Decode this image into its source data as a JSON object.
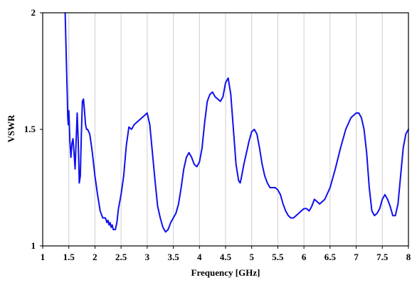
{
  "chart_data": {
    "type": "line",
    "title": "",
    "xlabel": "Frequency [GHz]",
    "ylabel": "VSWR",
    "xlim": [
      1,
      8
    ],
    "ylim": [
      1,
      2
    ],
    "x_ticks": [
      "1",
      "1.5",
      "2",
      "2.5",
      "3",
      "3.5",
      "4",
      "4.5",
      "5",
      "5.5",
      "6",
      "6.5",
      "7",
      "7.5",
      "8"
    ],
    "y_ticks": [
      "1",
      "1.5",
      "2"
    ],
    "grid": "vertical",
    "legend": "none",
    "colors": {
      "line": "#1010ee",
      "grid": "#cfcfcf",
      "axis": "#000000"
    },
    "series": [
      {
        "x": [
          1.43,
          1.45,
          1.47,
          1.48,
          1.49,
          1.5,
          1.51,
          1.52,
          1.54,
          1.56,
          1.58,
          1.6,
          1.62,
          1.64,
          1.66,
          1.68,
          1.7,
          1.72,
          1.74,
          1.76,
          1.78,
          1.8,
          1.82,
          1.84,
          1.86,
          1.88,
          1.9,
          1.92,
          1.95,
          2.0,
          2.05,
          2.1,
          2.15,
          2.2,
          2.23,
          2.25,
          2.27,
          2.29,
          2.31,
          2.33,
          2.35,
          2.37,
          2.39,
          2.4,
          2.42,
          2.45,
          2.5,
          2.55,
          2.6,
          2.65,
          2.7,
          2.75,
          2.8,
          2.85,
          2.9,
          2.95,
          3.0,
          3.05,
          3.1,
          3.15,
          3.2,
          3.25,
          3.3,
          3.35,
          3.4,
          3.45,
          3.5,
          3.55,
          3.6,
          3.65,
          3.7,
          3.75,
          3.8,
          3.85,
          3.9,
          3.95,
          4.0,
          4.05,
          4.1,
          4.15,
          4.2,
          4.25,
          4.3,
          4.35,
          4.4,
          4.45,
          4.5,
          4.55,
          4.6,
          4.65,
          4.7,
          4.75,
          4.78,
          4.8,
          4.85,
          4.9,
          4.95,
          5.0,
          5.05,
          5.1,
          5.15,
          5.2,
          5.25,
          5.3,
          5.35,
          5.4,
          5.45,
          5.5,
          5.55,
          5.6,
          5.65,
          5.7,
          5.75,
          5.8,
          5.85,
          5.9,
          5.95,
          6.0,
          6.05,
          6.1,
          6.15,
          6.2,
          6.25,
          6.3,
          6.4,
          6.5,
          6.6,
          6.7,
          6.8,
          6.9,
          7.0,
          7.05,
          7.1,
          7.15,
          7.2,
          7.25,
          7.3,
          7.35,
          7.4,
          7.45,
          7.5,
          7.55,
          7.6,
          7.65,
          7.7,
          7.75,
          7.8,
          7.85,
          7.9,
          7.95,
          8.0
        ],
        "y": [
          2.0,
          1.82,
          1.65,
          1.55,
          1.52,
          1.58,
          1.52,
          1.45,
          1.38,
          1.44,
          1.46,
          1.4,
          1.33,
          1.45,
          1.57,
          1.45,
          1.27,
          1.3,
          1.48,
          1.62,
          1.63,
          1.58,
          1.52,
          1.5,
          1.5,
          1.49,
          1.48,
          1.45,
          1.4,
          1.3,
          1.22,
          1.15,
          1.12,
          1.12,
          1.1,
          1.11,
          1.09,
          1.1,
          1.08,
          1.09,
          1.07,
          1.07,
          1.07,
          1.08,
          1.1,
          1.16,
          1.22,
          1.3,
          1.43,
          1.51,
          1.5,
          1.52,
          1.53,
          1.54,
          1.55,
          1.56,
          1.57,
          1.52,
          1.4,
          1.28,
          1.17,
          1.12,
          1.08,
          1.06,
          1.07,
          1.1,
          1.12,
          1.14,
          1.18,
          1.25,
          1.33,
          1.38,
          1.4,
          1.38,
          1.35,
          1.34,
          1.36,
          1.42,
          1.53,
          1.62,
          1.65,
          1.66,
          1.64,
          1.63,
          1.62,
          1.64,
          1.7,
          1.72,
          1.65,
          1.5,
          1.35,
          1.28,
          1.27,
          1.29,
          1.35,
          1.4,
          1.45,
          1.49,
          1.5,
          1.48,
          1.42,
          1.35,
          1.3,
          1.27,
          1.25,
          1.25,
          1.25,
          1.24,
          1.22,
          1.18,
          1.15,
          1.13,
          1.12,
          1.12,
          1.13,
          1.14,
          1.15,
          1.16,
          1.16,
          1.15,
          1.17,
          1.2,
          1.19,
          1.18,
          1.2,
          1.25,
          1.33,
          1.42,
          1.5,
          1.55,
          1.57,
          1.57,
          1.55,
          1.5,
          1.4,
          1.25,
          1.15,
          1.13,
          1.14,
          1.16,
          1.2,
          1.22,
          1.2,
          1.17,
          1.13,
          1.13,
          1.18,
          1.3,
          1.42,
          1.48,
          1.5
        ]
      }
    ]
  }
}
